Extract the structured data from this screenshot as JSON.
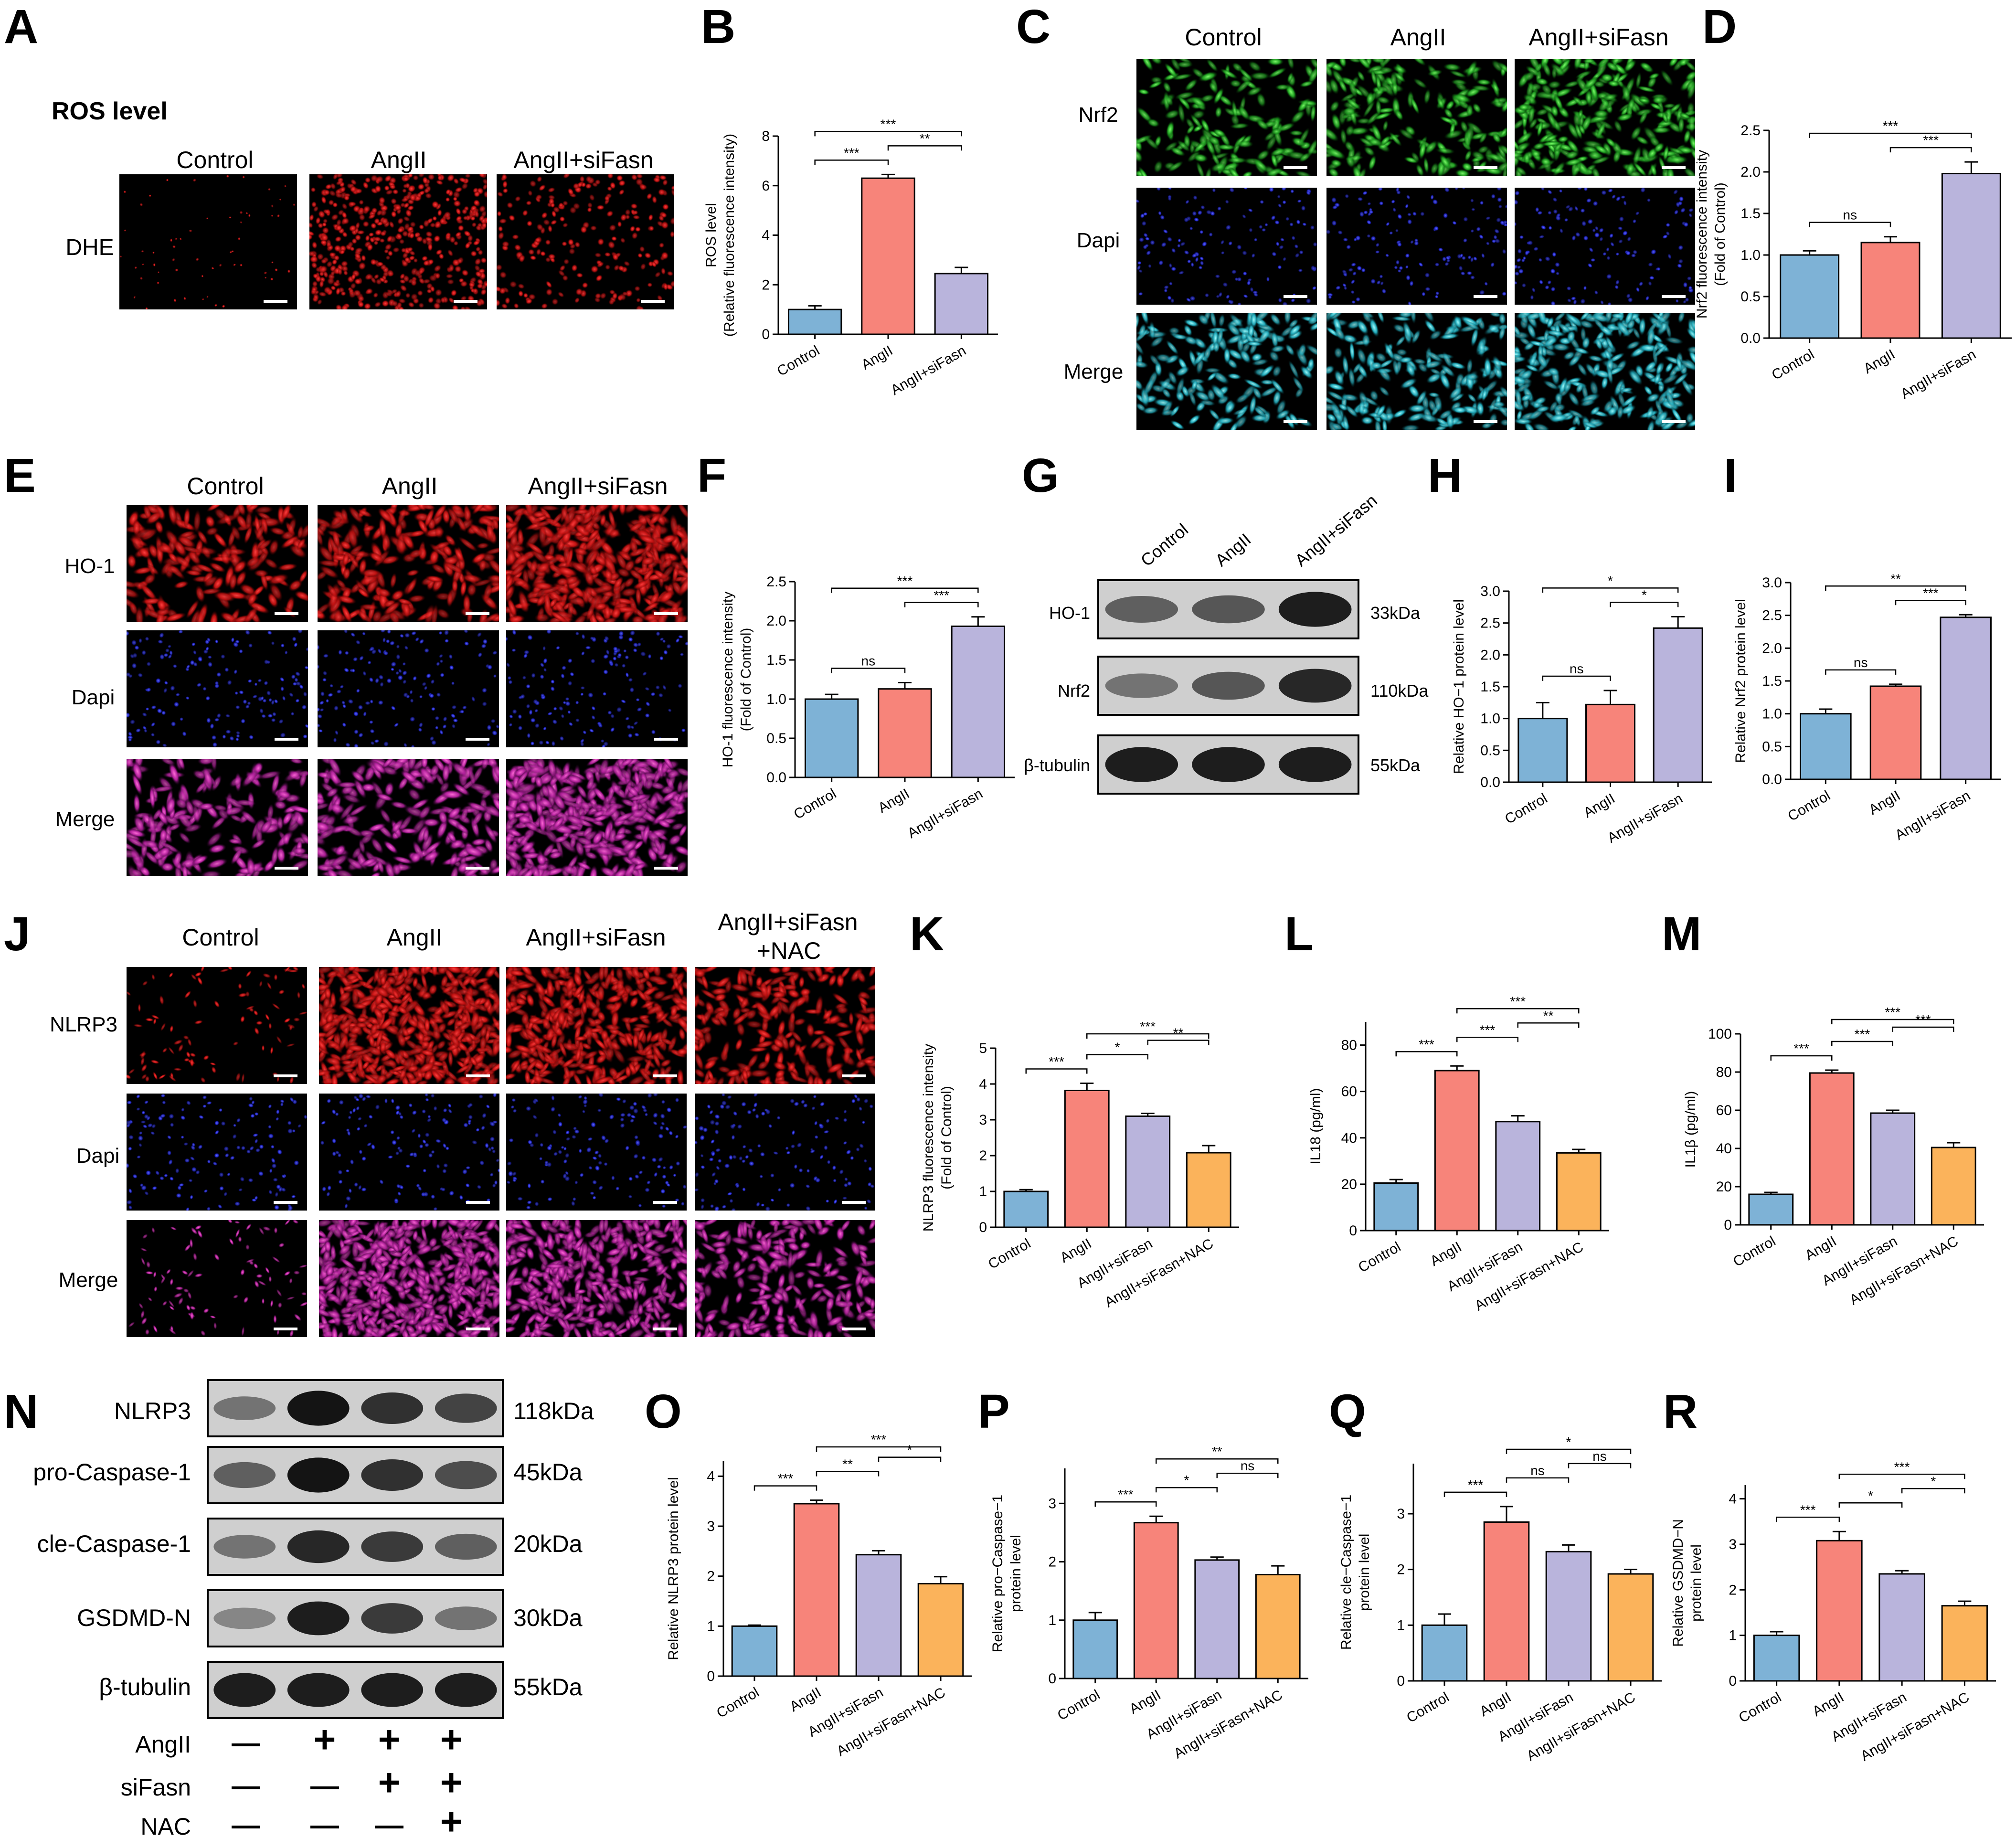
{
  "figure": {
    "groups3": [
      "Control",
      "AngII",
      "AngII+siFasn"
    ],
    "groups4": [
      "Control",
      "AngII",
      "AngII+siFasn",
      "AngII+siFasn+NAC"
    ],
    "colors": {
      "control": "#7eb2d6",
      "angii": "#f7847a",
      "sifasn": "#b9b4dc",
      "nac": "#fbb35b"
    },
    "panel_A": {
      "letter": "A",
      "title": "ROS level",
      "row_labels": [
        "DHE"
      ],
      "col_labels": [
        "Control",
        "AngII",
        "AngII+siFasn"
      ]
    },
    "panel_C": {
      "letter": "C",
      "row_labels": [
        "Nrf2",
        "Dapi",
        "Merge"
      ],
      "col_labels": [
        "Control",
        "AngII",
        "AngII+siFasn"
      ]
    },
    "panel_E": {
      "letter": "E",
      "row_labels": [
        "HO-1",
        "Dapi",
        "Merge"
      ],
      "col_labels": [
        "Control",
        "AngII",
        "AngII+siFasn"
      ]
    },
    "panel_G": {
      "letter": "G",
      "lanes": [
        "Control",
        "AngII",
        "AngII+siFasn"
      ],
      "bands": [
        {
          "name": "HO-1",
          "kda": "33kDa",
          "intensity": [
            0.55,
            0.6,
            0.9
          ]
        },
        {
          "name": "Nrf2",
          "kda": "110kDa",
          "intensity": [
            0.45,
            0.6,
            0.85
          ]
        },
        {
          "name": "β-tubulin",
          "kda": "55kDa",
          "intensity": [
            0.9,
            0.9,
            0.9
          ]
        }
      ]
    },
    "panel_J": {
      "letter": "J",
      "row_labels": [
        "NLRP3",
        "Dapi",
        "Merge"
      ],
      "col_labels": [
        "Control",
        "AngII",
        "AngII+siFasn",
        "AngII+siFasn",
        "+NAC"
      ]
    },
    "panel_N": {
      "letter": "N",
      "lanes": 4,
      "bands": [
        {
          "name": "NLRP3",
          "kda": "118kDa",
          "intensity": [
            0.45,
            0.95,
            0.8,
            0.7
          ]
        },
        {
          "name": "pro-Caspase-1",
          "kda": "45kDa",
          "intensity": [
            0.55,
            0.95,
            0.8,
            0.65
          ]
        },
        {
          "name": "cle-Caspase-1",
          "kda": "20kDa",
          "intensity": [
            0.45,
            0.85,
            0.75,
            0.55
          ]
        },
        {
          "name": "GSDMD-N",
          "kda": "30kDa",
          "intensity": [
            0.35,
            0.9,
            0.75,
            0.45
          ]
        },
        {
          "name": "β-tubulin",
          "kda": "55kDa",
          "intensity": [
            0.9,
            0.9,
            0.9,
            0.9
          ]
        }
      ],
      "treatments": [
        {
          "name": "AngII",
          "signs": [
            "—",
            "+",
            "+",
            "+"
          ]
        },
        {
          "name": "siFasn",
          "signs": [
            "—",
            "—",
            "+",
            "+"
          ]
        },
        {
          "name": "NAC",
          "signs": [
            "—",
            "—",
            "—",
            "+"
          ]
        }
      ]
    }
  },
  "chart_data": [
    {
      "id": "B",
      "type": "bar",
      "categories": [
        "Control",
        "AngII",
        "AngII+siFasn"
      ],
      "values": [
        1.0,
        6.3,
        2.45
      ],
      "errors": [
        0.15,
        0.15,
        0.25
      ],
      "ylabel_lines": [
        "ROS level",
        "(Relative fluorescence intensity)"
      ],
      "ylim": [
        0,
        8
      ],
      "yticks": [
        0,
        2,
        4,
        6,
        8
      ],
      "sig": [
        {
          "a": 0,
          "b": 1,
          "label": "***"
        },
        {
          "a": 0,
          "b": 2,
          "label": "***"
        },
        {
          "a": 1,
          "b": 2,
          "label": "**"
        }
      ]
    },
    {
      "id": "D",
      "type": "bar",
      "categories": [
        "Control",
        "AngII",
        "AngII+siFasn"
      ],
      "values": [
        1.0,
        1.15,
        1.98
      ],
      "errors": [
        0.05,
        0.07,
        0.14
      ],
      "ylabel_lines": [
        "Nrf2 fluorescence intensity",
        "(Fold of Control)"
      ],
      "ylim": [
        0,
        2.5
      ],
      "yticks": [
        0.0,
        0.5,
        1.0,
        1.5,
        2.0,
        2.5
      ],
      "sig": [
        {
          "a": 0,
          "b": 1,
          "label": "ns"
        },
        {
          "a": 0,
          "b": 2,
          "label": "***"
        },
        {
          "a": 1,
          "b": 2,
          "label": "***"
        }
      ]
    },
    {
      "id": "F",
      "type": "bar",
      "categories": [
        "Control",
        "AngII",
        "AngII+siFasn"
      ],
      "values": [
        1.0,
        1.13,
        1.93
      ],
      "errors": [
        0.06,
        0.08,
        0.12
      ],
      "ylabel_lines": [
        "HO-1 fluorescence intensity",
        "(Fold of Control)"
      ],
      "ylim": [
        0,
        2.5
      ],
      "yticks": [
        0.0,
        0.5,
        1.0,
        1.5,
        2.0,
        2.5
      ],
      "sig": [
        {
          "a": 0,
          "b": 1,
          "label": "ns"
        },
        {
          "a": 0,
          "b": 2,
          "label": "***"
        },
        {
          "a": 1,
          "b": 2,
          "label": "***"
        }
      ]
    },
    {
      "id": "H",
      "type": "bar",
      "categories": [
        "Control",
        "AngII",
        "AngII+siFasn"
      ],
      "values": [
        1.0,
        1.22,
        2.42
      ],
      "errors": [
        0.25,
        0.22,
        0.18
      ],
      "ylabel_lines": [
        "Relative HO−1 protein level"
      ],
      "ylim": [
        0,
        3.0
      ],
      "yticks": [
        0.0,
        0.5,
        1.0,
        1.5,
        2.0,
        2.5,
        3.0
      ],
      "sig": [
        {
          "a": 0,
          "b": 1,
          "label": "ns"
        },
        {
          "a": 0,
          "b": 2,
          "label": "*"
        },
        {
          "a": 1,
          "b": 2,
          "label": "*"
        }
      ]
    },
    {
      "id": "I",
      "type": "bar",
      "categories": [
        "Control",
        "AngII",
        "AngII+siFasn"
      ],
      "values": [
        1.0,
        1.42,
        2.47
      ],
      "errors": [
        0.07,
        0.03,
        0.04
      ],
      "ylabel_lines": [
        "Relative Nrf2 protein level"
      ],
      "ylim": [
        0,
        3.0
      ],
      "yticks": [
        0.0,
        0.5,
        1.0,
        1.5,
        2.0,
        2.5,
        3.0
      ],
      "sig": [
        {
          "a": 0,
          "b": 1,
          "label": "ns"
        },
        {
          "a": 0,
          "b": 2,
          "label": "**"
        },
        {
          "a": 1,
          "b": 2,
          "label": "***"
        }
      ]
    },
    {
      "id": "K",
      "type": "bar",
      "categories": [
        "Control",
        "AngII",
        "AngII+siFasn",
        "AngII+siFasn+NAC"
      ],
      "values": [
        1.0,
        3.82,
        3.1,
        2.08
      ],
      "errors": [
        0.05,
        0.2,
        0.08,
        0.2
      ],
      "ylabel_lines": [
        "NLRP3 fluorescence intensity",
        "(Fold of Control)"
      ],
      "ylim": [
        0,
        5
      ],
      "yticks": [
        0,
        1,
        2,
        3,
        4,
        5
      ],
      "sig": [
        {
          "a": 0,
          "b": 1,
          "label": "***"
        },
        {
          "a": 1,
          "b": 2,
          "label": "*"
        },
        {
          "a": 1,
          "b": 3,
          "label": "***"
        },
        {
          "a": 2,
          "b": 3,
          "label": "**"
        }
      ]
    },
    {
      "id": "L",
      "type": "bar",
      "categories": [
        "Control",
        "AngII",
        "AngII+siFasn",
        "AngII+siFasn+NAC"
      ],
      "values": [
        20.5,
        69.0,
        47.0,
        33.5
      ],
      "errors": [
        1.5,
        2.0,
        2.5,
        1.5
      ],
      "ylabel_lines": [
        "IL18 (pg/ml)"
      ],
      "ylim": [
        0,
        90
      ],
      "yticks": [
        0,
        20,
        40,
        60,
        80
      ],
      "sig": [
        {
          "a": 0,
          "b": 1,
          "label": "***"
        },
        {
          "a": 1,
          "b": 2,
          "label": "***"
        },
        {
          "a": 1,
          "b": 3,
          "label": "***"
        },
        {
          "a": 2,
          "b": 3,
          "label": "**"
        }
      ]
    },
    {
      "id": "M",
      "type": "bar",
      "categories": [
        "Control",
        "AngII",
        "AngII+siFasn",
        "AngII+siFasn+NAC"
      ],
      "values": [
        16.0,
        79.5,
        58.5,
        40.5
      ],
      "errors": [
        1.0,
        1.5,
        1.5,
        2.5
      ],
      "ylabel_lines": [
        "IL1β (pg/ml)"
      ],
      "ylim": [
        0,
        100
      ],
      "yticks": [
        0,
        20,
        40,
        60,
        80,
        100
      ],
      "sig": [
        {
          "a": 0,
          "b": 1,
          "label": "***"
        },
        {
          "a": 1,
          "b": 2,
          "label": "***"
        },
        {
          "a": 1,
          "b": 3,
          "label": "***"
        },
        {
          "a": 2,
          "b": 3,
          "label": "***"
        }
      ]
    },
    {
      "id": "O",
      "type": "bar",
      "categories": [
        "Control",
        "AngII",
        "AngII+siFasn",
        "AngII+siFasn+NAC"
      ],
      "values": [
        1.0,
        3.45,
        2.43,
        1.85
      ],
      "errors": [
        0.02,
        0.07,
        0.08,
        0.14
      ],
      "ylabel_lines": [
        "Relative NLRP3 protein level"
      ],
      "ylim": [
        0,
        4.3
      ],
      "yticks": [
        0,
        1,
        2,
        3,
        4
      ],
      "sig": [
        {
          "a": 0,
          "b": 1,
          "label": "***"
        },
        {
          "a": 1,
          "b": 2,
          "label": "**"
        },
        {
          "a": 1,
          "b": 3,
          "label": "***"
        },
        {
          "a": 2,
          "b": 3,
          "label": "*"
        }
      ]
    },
    {
      "id": "P",
      "type": "bar",
      "categories": [
        "Control",
        "AngII",
        "AngII+siFasn",
        "AngII+siFasn+NAC"
      ],
      "values": [
        1.0,
        2.67,
        2.03,
        1.78
      ],
      "errors": [
        0.13,
        0.11,
        0.05,
        0.15
      ],
      "ylabel_lines": [
        "Relative pro−Caspase−1",
        "protein level"
      ],
      "ylim": [
        0,
        3.6
      ],
      "yticks": [
        0,
        1,
        2,
        3
      ],
      "sig": [
        {
          "a": 0,
          "b": 1,
          "label": "***"
        },
        {
          "a": 1,
          "b": 2,
          "label": "*"
        },
        {
          "a": 1,
          "b": 3,
          "label": "**"
        },
        {
          "a": 2,
          "b": 3,
          "label": "ns"
        }
      ]
    },
    {
      "id": "Q",
      "type": "bar",
      "categories": [
        "Control",
        "AngII",
        "AngII+siFasn",
        "AngII+siFasn+NAC"
      ],
      "values": [
        1.0,
        2.85,
        2.32,
        1.92
      ],
      "errors": [
        0.2,
        0.28,
        0.12,
        0.08
      ],
      "ylabel_lines": [
        "Relative cle−Caspase−1",
        "protein level"
      ],
      "ylim": [
        0,
        3.9
      ],
      "yticks": [
        0,
        1,
        2,
        3
      ],
      "sig": [
        {
          "a": 0,
          "b": 1,
          "label": "***"
        },
        {
          "a": 1,
          "b": 2,
          "label": "ns"
        },
        {
          "a": 1,
          "b": 3,
          "label": "*"
        },
        {
          "a": 2,
          "b": 3,
          "label": "ns"
        }
      ]
    },
    {
      "id": "R",
      "type": "bar",
      "categories": [
        "Control",
        "AngII",
        "AngII+siFasn",
        "AngII+siFasn+NAC"
      ],
      "values": [
        1.0,
        3.08,
        2.35,
        1.65
      ],
      "errors": [
        0.08,
        0.2,
        0.07,
        0.1
      ],
      "ylabel_lines": [
        "Relative GSDMD−N",
        "protein level"
      ],
      "ylim": [
        0,
        4.3
      ],
      "yticks": [
        0,
        1,
        2,
        3,
        4
      ],
      "sig": [
        {
          "a": 0,
          "b": 1,
          "label": "***"
        },
        {
          "a": 1,
          "b": 2,
          "label": "*"
        },
        {
          "a": 1,
          "b": 3,
          "label": "***"
        },
        {
          "a": 2,
          "b": 3,
          "label": "*"
        }
      ]
    }
  ]
}
